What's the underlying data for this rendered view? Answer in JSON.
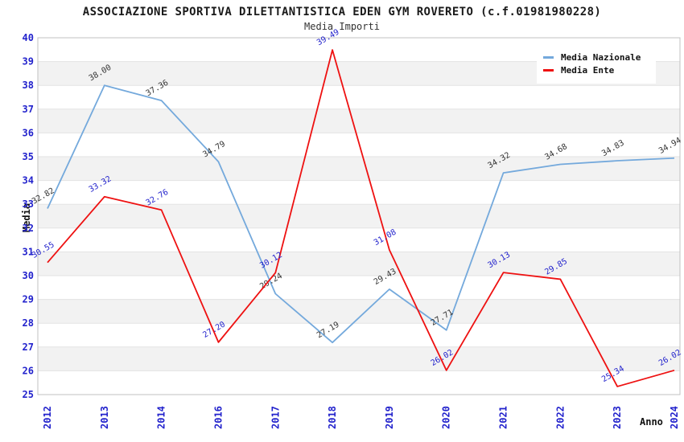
{
  "header": {
    "title": "ASSOCIAZIONE SPORTIVA DILETTANTISTICA EDEN GYM ROVERETO (c.f.01981980228)",
    "subtitle": "Media Importi"
  },
  "chart_data": {
    "type": "line",
    "title": "ASSOCIAZIONE SPORTIVA DILETTANTISTICA EDEN GYM ROVERETO (c.f.01981980228)",
    "subtitle": "Media Importi",
    "categories": [
      "2012",
      "2013",
      "2014",
      "2016",
      "2017",
      "2018",
      "2019",
      "2020",
      "2021",
      "2022",
      "2023",
      "2024"
    ],
    "series": [
      {
        "name": "Media Nazionale",
        "color": "#74a9dc",
        "label_color": "#333333",
        "values": [
          32.82,
          38.0,
          37.36,
          34.79,
          29.24,
          27.19,
          29.43,
          27.71,
          34.32,
          34.68,
          34.83,
          34.94
        ]
      },
      {
        "name": "Media Ente",
        "color": "#ee1111",
        "label_color": "#2222cc",
        "values": [
          30.55,
          33.32,
          32.76,
          27.2,
          30.12,
          39.49,
          31.08,
          26.02,
          30.13,
          29.85,
          25.34,
          26.02
        ]
      }
    ],
    "xlabel": "Anno",
    "ylabel": "Media",
    "ylim": [
      25,
      40
    ],
    "ytick_step": 1,
    "grid": "horizontal",
    "legend_position": "top-right",
    "tick_color": "#2222cc",
    "band_color": "#f2f2f2",
    "gridline_color": "#e3e3e3",
    "border_color": "#c0c0c0"
  }
}
